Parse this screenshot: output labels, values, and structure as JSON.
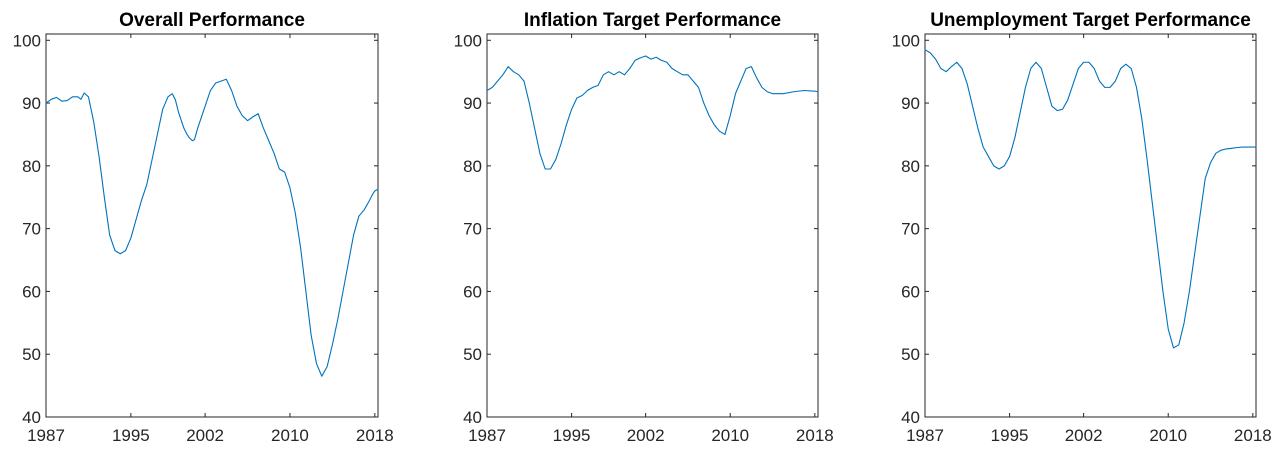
{
  "chart_data": [
    {
      "type": "line",
      "title": "Overall Performance",
      "xlabel": "",
      "ylabel": "",
      "xlim": [
        1987,
        2018.3
      ],
      "ylim": [
        40,
        101
      ],
      "xticks": [
        1987,
        1995,
        2002,
        2010,
        2018
      ],
      "xtick_labels": [
        "1987",
        "1995",
        "2002",
        "2010",
        "2018"
      ],
      "yticks": [
        40,
        50,
        60,
        70,
        80,
        90,
        100
      ],
      "ytick_labels": [
        "40",
        "50",
        "60",
        "70",
        "80",
        "90",
        "100"
      ],
      "grid": false,
      "series": [
        {
          "color": "#0072BD",
          "x": [
            1987.0,
            1987.5,
            1988.0,
            1988.5,
            1989.0,
            1989.5,
            1990.0,
            1990.3,
            1990.6,
            1991.0,
            1991.5,
            1992.0,
            1992.5,
            1993.0,
            1993.5,
            1994.0,
            1994.5,
            1995.0,
            1995.5,
            1996.0,
            1996.5,
            1997.0,
            1997.5,
            1998.0,
            1998.5,
            1998.9,
            1999.2,
            1999.5,
            2000.0,
            2000.3,
            2000.5,
            2000.8,
            2001.0,
            2001.3,
            2001.5,
            2002.0,
            2002.5,
            2003.0,
            2003.5,
            2004.0,
            2004.5,
            2005.0,
            2005.5,
            2006.0,
            2006.5,
            2007.0,
            2007.5,
            2008.0,
            2008.5,
            2009.0,
            2009.5,
            2010.0,
            2010.5,
            2011.0,
            2011.5,
            2012.0,
            2012.5,
            2013.0,
            2013.5,
            2014.0,
            2014.5,
            2015.0,
            2015.5,
            2016.0,
            2016.5,
            2017.0,
            2017.5,
            2017.8,
            2018.0,
            2018.3
          ],
          "y": [
            90.0,
            90.6,
            90.9,
            90.3,
            90.4,
            91.0,
            91.0,
            90.6,
            91.6,
            91.0,
            87.0,
            81.5,
            75.0,
            69.0,
            66.5,
            66.0,
            66.5,
            68.5,
            71.5,
            74.5,
            77.0,
            81.0,
            85.0,
            89.0,
            91.0,
            91.5,
            90.5,
            88.5,
            86.0,
            85.0,
            84.5,
            84.0,
            84.2,
            86.0,
            87.0,
            89.5,
            92.0,
            93.2,
            93.5,
            93.8,
            92.0,
            89.5,
            88.0,
            87.2,
            87.8,
            88.3,
            86.0,
            84.0,
            82.0,
            79.5,
            79.0,
            76.5,
            72.5,
            67.0,
            60.0,
            53.0,
            48.5,
            46.5,
            48.0,
            51.5,
            55.5,
            60.0,
            64.5,
            69.0,
            72.0,
            73.0,
            74.5,
            75.5,
            76.0,
            76.3
          ]
        }
      ]
    },
    {
      "type": "line",
      "title": "Inflation Target Performance",
      "xlabel": "",
      "ylabel": "",
      "xlim": [
        1987,
        2018.3
      ],
      "ylim": [
        40,
        101
      ],
      "xticks": [
        1987,
        1995,
        2002,
        2010,
        2018
      ],
      "xtick_labels": [
        "1987",
        "1995",
        "2002",
        "2010",
        "2018"
      ],
      "yticks": [
        40,
        50,
        60,
        70,
        80,
        90,
        100
      ],
      "ytick_labels": [
        "40",
        "50",
        "60",
        "70",
        "80",
        "90",
        "100"
      ],
      "grid": false,
      "series": [
        {
          "color": "#0072BD",
          "x": [
            1987.0,
            1987.5,
            1988.0,
            1988.5,
            1989.0,
            1989.5,
            1990.0,
            1990.5,
            1991.0,
            1991.5,
            1992.0,
            1992.5,
            1993.0,
            1993.5,
            1994.0,
            1994.5,
            1995.0,
            1995.5,
            1996.0,
            1996.5,
            1997.0,
            1997.5,
            1998.0,
            1998.5,
            1999.0,
            1999.5,
            2000.0,
            2000.5,
            2001.0,
            2001.5,
            2002.0,
            2002.5,
            2003.0,
            2003.5,
            2004.0,
            2004.5,
            2005.0,
            2005.5,
            2006.0,
            2006.5,
            2007.0,
            2007.5,
            2008.0,
            2008.5,
            2009.0,
            2009.5,
            2010.0,
            2010.5,
            2011.0,
            2011.5,
            2012.0,
            2012.5,
            2013.0,
            2013.5,
            2014.0,
            2015.0,
            2016.0,
            2017.0,
            2018.0,
            2018.3
          ],
          "y": [
            92.0,
            92.5,
            93.5,
            94.5,
            95.8,
            95.0,
            94.5,
            93.5,
            90.0,
            86.0,
            82.0,
            79.5,
            79.5,
            81.0,
            83.5,
            86.5,
            89.0,
            90.8,
            91.2,
            92.0,
            92.5,
            92.8,
            94.5,
            95.0,
            94.5,
            95.0,
            94.5,
            95.5,
            96.8,
            97.2,
            97.5,
            97.0,
            97.3,
            96.8,
            96.5,
            95.5,
            95.0,
            94.5,
            94.5,
            93.5,
            92.5,
            90.0,
            88.0,
            86.5,
            85.5,
            85.0,
            88.0,
            91.5,
            93.5,
            95.5,
            95.8,
            94.0,
            92.5,
            91.8,
            91.5,
            91.5,
            91.8,
            92.0,
            91.9,
            91.8
          ]
        }
      ]
    },
    {
      "type": "line",
      "title": "Unemployment Target Performance",
      "xlabel": "",
      "ylabel": "",
      "xlim": [
        1987,
        2018.3
      ],
      "ylim": [
        40,
        101
      ],
      "xticks": [
        1987,
        1995,
        2002,
        2010,
        2018
      ],
      "xtick_labels": [
        "1987",
        "1995",
        "2002",
        "2010",
        "2018"
      ],
      "yticks": [
        40,
        50,
        60,
        70,
        80,
        90,
        100
      ],
      "ytick_labels": [
        "40",
        "50",
        "60",
        "70",
        "80",
        "90",
        "100"
      ],
      "grid": false,
      "series": [
        {
          "color": "#0072BD",
          "x": [
            1987.0,
            1987.5,
            1988.0,
            1988.5,
            1989.0,
            1989.5,
            1990.0,
            1990.5,
            1991.0,
            1991.5,
            1992.0,
            1992.5,
            1993.0,
            1993.5,
            1994.0,
            1994.5,
            1995.0,
            1995.5,
            1996.0,
            1996.5,
            1997.0,
            1997.5,
            1998.0,
            1998.5,
            1999.0,
            1999.5,
            2000.0,
            2000.5,
            2001.0,
            2001.5,
            2002.0,
            2002.5,
            2003.0,
            2003.5,
            2004.0,
            2004.5,
            2005.0,
            2005.5,
            2006.0,
            2006.5,
            2007.0,
            2007.5,
            2008.0,
            2008.5,
            2009.0,
            2009.5,
            2010.0,
            2010.5,
            2011.0,
            2011.5,
            2012.0,
            2012.5,
            2013.0,
            2013.5,
            2014.0,
            2014.5,
            2015.0,
            2015.5,
            2016.0,
            2016.5,
            2017.0,
            2017.5,
            2018.0,
            2018.3
          ],
          "y": [
            98.5,
            98.0,
            97.0,
            95.5,
            95.0,
            95.8,
            96.5,
            95.5,
            93.0,
            89.5,
            86.0,
            83.0,
            81.5,
            80.0,
            79.5,
            80.0,
            81.5,
            84.5,
            88.5,
            92.5,
            95.5,
            96.5,
            95.5,
            92.5,
            89.5,
            88.8,
            89.0,
            90.5,
            93.0,
            95.5,
            96.5,
            96.5,
            95.5,
            93.5,
            92.5,
            92.5,
            93.5,
            95.5,
            96.2,
            95.5,
            92.5,
            87.5,
            81.0,
            74.0,
            67.0,
            60.0,
            54.0,
            51.0,
            51.5,
            55.0,
            60.0,
            66.0,
            72.0,
            78.0,
            80.5,
            82.0,
            82.5,
            82.7,
            82.8,
            82.9,
            83.0,
            83.0,
            83.0,
            83.0
          ]
        }
      ]
    }
  ]
}
